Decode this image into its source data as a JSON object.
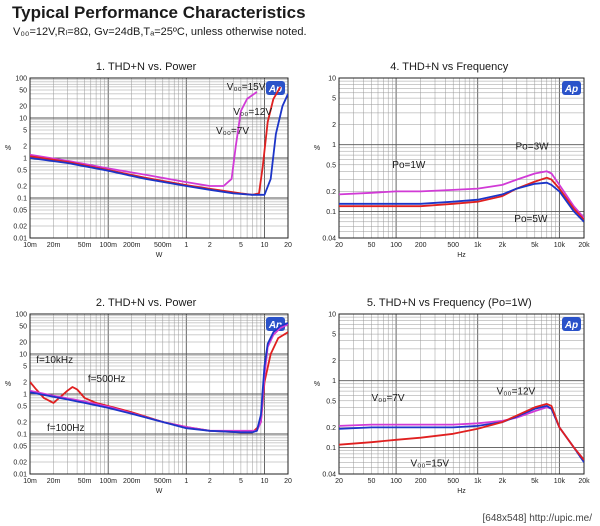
{
  "header": {
    "title": "Typical Performance Characteristics",
    "subtitle": "V₀₀=12V,Rₗ=8Ω, Gv=24dB,Tₐ=25ºC, unless otherwise noted."
  },
  "footer": {
    "text": "[648x548] http://upic.me/"
  },
  "chart_data": [
    {
      "id": "thd-vs-power-vdd",
      "type": "line",
      "title": "1. THD+N vs. Power",
      "xlabel": "W",
      "ylabel": "%",
      "xscale": "log",
      "yscale": "log",
      "xlim": [
        0.01,
        20
      ],
      "ylim": [
        0.01,
        100
      ],
      "grid": true,
      "xticks": [
        0.01,
        0.02,
        0.05,
        0.1,
        0.2,
        0.5,
        1,
        2,
        5,
        10,
        20
      ],
      "xtick_labels": [
        "10m",
        "20m",
        "50m",
        "100m",
        "200m",
        "500m",
        "1",
        "2",
        "5",
        "10",
        "20"
      ],
      "yticks": [
        0.01,
        0.02,
        0.05,
        0.1,
        0.2,
        0.5,
        1,
        2,
        5,
        10,
        20,
        50,
        100
      ],
      "ytick_labels": [
        "0.01",
        "0.02",
        "0.05",
        "0.1",
        "0.2",
        "0.5",
        "1",
        "2",
        "5",
        "10",
        "20",
        "50",
        "100"
      ],
      "series": [
        {
          "name": "VDD=15V",
          "color": "#d13ad6",
          "x": [
            0.01,
            0.03,
            0.1,
            0.3,
            1,
            2,
            3,
            3.8,
            4.3,
            5,
            6,
            8
          ],
          "y": [
            1.2,
            0.85,
            0.55,
            0.38,
            0.25,
            0.2,
            0.2,
            0.3,
            2,
            15,
            30,
            45
          ]
        },
        {
          "name": "VDD=12V",
          "color": "#e02020",
          "x": [
            0.01,
            0.03,
            0.1,
            0.3,
            1,
            2,
            5,
            7,
            8.5,
            9.5,
            11,
            13,
            16
          ],
          "y": [
            1.1,
            0.8,
            0.5,
            0.32,
            0.21,
            0.17,
            0.13,
            0.12,
            0.13,
            0.6,
            8,
            30,
            60
          ]
        },
        {
          "name": "VDD=7V",
          "color": "#1c35c8",
          "x": [
            0.01,
            0.03,
            0.1,
            0.3,
            1,
            2,
            4,
            7,
            10,
            12,
            14,
            17,
            20
          ],
          "y": [
            1.0,
            0.75,
            0.48,
            0.3,
            0.2,
            0.16,
            0.13,
            0.12,
            0.12,
            0.3,
            4,
            20,
            40
          ]
        }
      ],
      "annotations": [
        {
          "text": "V₀₀=15V",
          "x": 3.3,
          "y": 50
        },
        {
          "text": "V₀₀=12V",
          "x": 4.0,
          "y": 12
        },
        {
          "text": "V₀₀=7V",
          "x": 2.4,
          "y": 4
        }
      ]
    },
    {
      "id": "thd-vs-frequency",
      "type": "line",
      "title": "4. THD+N vs Frequency",
      "xlabel": "Hz",
      "ylabel": "%",
      "xscale": "log",
      "yscale": "log",
      "xlim": [
        20,
        20000
      ],
      "ylim": [
        0.04,
        10
      ],
      "grid": true,
      "xticks": [
        20,
        50,
        100,
        200,
        500,
        1000,
        2000,
        5000,
        10000,
        20000
      ],
      "xtick_labels": [
        "20",
        "50",
        "100",
        "200",
        "500",
        "1k",
        "2k",
        "5k",
        "10k",
        "20k"
      ],
      "yticks": [
        0.04,
        0.1,
        0.2,
        0.5,
        1,
        2,
        5,
        10
      ],
      "ytick_labels": [
        "0.04",
        "0.1",
        "0.2",
        "0.5",
        "1",
        "2",
        "5",
        "10"
      ],
      "series": [
        {
          "name": "Po=1W",
          "color": "#d13ad6",
          "x": [
            20,
            50,
            100,
            200,
            500,
            1000,
            2000,
            3000,
            5000,
            7000,
            8000,
            10000,
            15000,
            20000
          ],
          "y": [
            0.18,
            0.19,
            0.2,
            0.2,
            0.21,
            0.22,
            0.25,
            0.3,
            0.37,
            0.4,
            0.37,
            0.25,
            0.12,
            0.08
          ]
        },
        {
          "name": "Po=3W",
          "color": "#e02020",
          "x": [
            20,
            50,
            100,
            200,
            500,
            1000,
            2000,
            3000,
            5000,
            7000,
            8000,
            10000,
            15000,
            20000
          ],
          "y": [
            0.12,
            0.12,
            0.12,
            0.12,
            0.13,
            0.14,
            0.17,
            0.22,
            0.28,
            0.32,
            0.3,
            0.22,
            0.11,
            0.075
          ]
        },
        {
          "name": "Po=5W",
          "color": "#1c35c8",
          "x": [
            20,
            50,
            100,
            200,
            500,
            1000,
            2000,
            3000,
            5000,
            7000,
            8000,
            10000,
            15000,
            20000
          ],
          "y": [
            0.13,
            0.13,
            0.13,
            0.13,
            0.14,
            0.15,
            0.18,
            0.22,
            0.26,
            0.27,
            0.25,
            0.2,
            0.1,
            0.07
          ]
        }
      ],
      "annotations": [
        {
          "text": "Po=1W",
          "x": 90,
          "y": 0.45
        },
        {
          "text": "Po=3W",
          "x": 2900,
          "y": 0.85
        },
        {
          "text": "Po=5W",
          "x": 2800,
          "y": 0.07
        }
      ]
    },
    {
      "id": "thd-vs-power-freq",
      "type": "line",
      "title": "2. THD+N vs. Power",
      "xlabel": "W",
      "ylabel": "%",
      "xscale": "log",
      "yscale": "log",
      "xlim": [
        0.01,
        20
      ],
      "ylim": [
        0.01,
        100
      ],
      "grid": true,
      "xticks": [
        0.01,
        0.02,
        0.05,
        0.1,
        0.2,
        0.5,
        1,
        2,
        5,
        10,
        20
      ],
      "xtick_labels": [
        "10m",
        "20m",
        "50m",
        "100m",
        "200m",
        "500m",
        "1",
        "2",
        "5",
        "10",
        "20"
      ],
      "yticks": [
        0.01,
        0.02,
        0.05,
        0.1,
        0.2,
        0.5,
        1,
        2,
        5,
        10,
        20,
        50,
        100
      ],
      "ytick_labels": [
        "0.01",
        "0.02",
        "0.05",
        "0.1",
        "0.2",
        "0.5",
        "1",
        "2",
        "5",
        "10",
        "20",
        "50",
        "100"
      ],
      "series": [
        {
          "name": "f=10kHz",
          "color": "#e02020",
          "x": [
            0.01,
            0.012,
            0.015,
            0.02,
            0.03,
            0.035,
            0.04,
            0.05,
            0.07,
            0.1,
            0.2,
            0.5,
            1,
            2,
            5,
            7,
            8,
            9,
            10,
            12,
            15,
            20
          ],
          "y": [
            2,
            1.3,
            0.8,
            0.6,
            1.2,
            1.5,
            1.3,
            0.8,
            0.6,
            0.5,
            0.35,
            0.2,
            0.15,
            0.12,
            0.11,
            0.11,
            0.14,
            0.2,
            2,
            10,
            25,
            35
          ]
        },
        {
          "name": "f=500Hz",
          "color": "#d13ad6",
          "x": [
            0.01,
            0.02,
            0.05,
            0.1,
            0.2,
            0.5,
            1,
            2,
            5,
            7,
            8,
            9,
            10,
            11,
            13,
            16,
            20
          ],
          "y": [
            1.2,
            0.9,
            0.65,
            0.48,
            0.33,
            0.2,
            0.15,
            0.12,
            0.12,
            0.12,
            0.12,
            0.2,
            3,
            15,
            30,
            45,
            55
          ]
        },
        {
          "name": "f=100Hz",
          "color": "#1c35c8",
          "x": [
            0.01,
            0.02,
            0.05,
            0.1,
            0.2,
            0.5,
            1,
            2,
            5,
            7,
            8,
            9,
            10,
            11,
            13,
            16,
            20
          ],
          "y": [
            1.1,
            0.85,
            0.6,
            0.45,
            0.32,
            0.2,
            0.14,
            0.12,
            0.11,
            0.11,
            0.12,
            0.3,
            5,
            18,
            35,
            50,
            60
          ]
        }
      ],
      "annotations": [
        {
          "text": "f=10kHz",
          "x": 0.012,
          "y": 6
        },
        {
          "text": "f=500Hz",
          "x": 0.055,
          "y": 2
        },
        {
          "text": "f=100Hz",
          "x": 0.0165,
          "y": 0.12
        }
      ]
    },
    {
      "id": "thd-vs-frequency-po1w",
      "type": "line",
      "title": "5. THD+N vs Frequency (Po=1W)",
      "xlabel": "Hz",
      "ylabel": "%",
      "xscale": "log",
      "yscale": "log",
      "xlim": [
        20,
        20000
      ],
      "ylim": [
        0.04,
        10
      ],
      "grid": true,
      "xticks": [
        20,
        50,
        100,
        200,
        500,
        1000,
        2000,
        5000,
        10000,
        20000
      ],
      "xtick_labels": [
        "20",
        "50",
        "100",
        "200",
        "500",
        "1k",
        "2k",
        "5k",
        "10k",
        "20k"
      ],
      "yticks": [
        0.04,
        0.1,
        0.2,
        0.5,
        1,
        2,
        5,
        10
      ],
      "ytick_labels": [
        "0.04",
        "0.1",
        "0.2",
        "0.5",
        "1",
        "2",
        "5",
        "10"
      ],
      "series": [
        {
          "name": "VDD=7V",
          "color": "#d13ad6",
          "x": [
            20,
            50,
            100,
            200,
            500,
            1000,
            2000,
            3000,
            5000,
            7000,
            8000,
            10000,
            15000,
            20000
          ],
          "y": [
            0.21,
            0.22,
            0.22,
            0.22,
            0.22,
            0.23,
            0.25,
            0.28,
            0.35,
            0.4,
            0.38,
            0.2,
            0.1,
            0.065
          ]
        },
        {
          "name": "VDD=12V",
          "color": "#1c35c8",
          "x": [
            20,
            50,
            100,
            200,
            500,
            1000,
            2000,
            3000,
            5000,
            7000,
            8000,
            10000,
            15000,
            20000
          ],
          "y": [
            0.19,
            0.2,
            0.2,
            0.2,
            0.2,
            0.21,
            0.24,
            0.29,
            0.38,
            0.42,
            0.38,
            0.2,
            0.1,
            0.06
          ]
        },
        {
          "name": "VDD=15V",
          "color": "#e02020",
          "x": [
            20,
            50,
            100,
            200,
            500,
            1000,
            2000,
            3000,
            5000,
            7000,
            8000,
            10000,
            15000,
            20000
          ],
          "y": [
            0.11,
            0.12,
            0.13,
            0.14,
            0.16,
            0.19,
            0.24,
            0.3,
            0.4,
            0.45,
            0.42,
            0.2,
            0.1,
            0.065
          ]
        }
      ],
      "annotations": [
        {
          "text": "V₀₀=7V",
          "x": 50,
          "y": 0.5
        },
        {
          "text": "V₀₀=12V",
          "x": 1700,
          "y": 0.62
        },
        {
          "text": "V₀₀=15V",
          "x": 150,
          "y": 0.052
        }
      ]
    }
  ]
}
